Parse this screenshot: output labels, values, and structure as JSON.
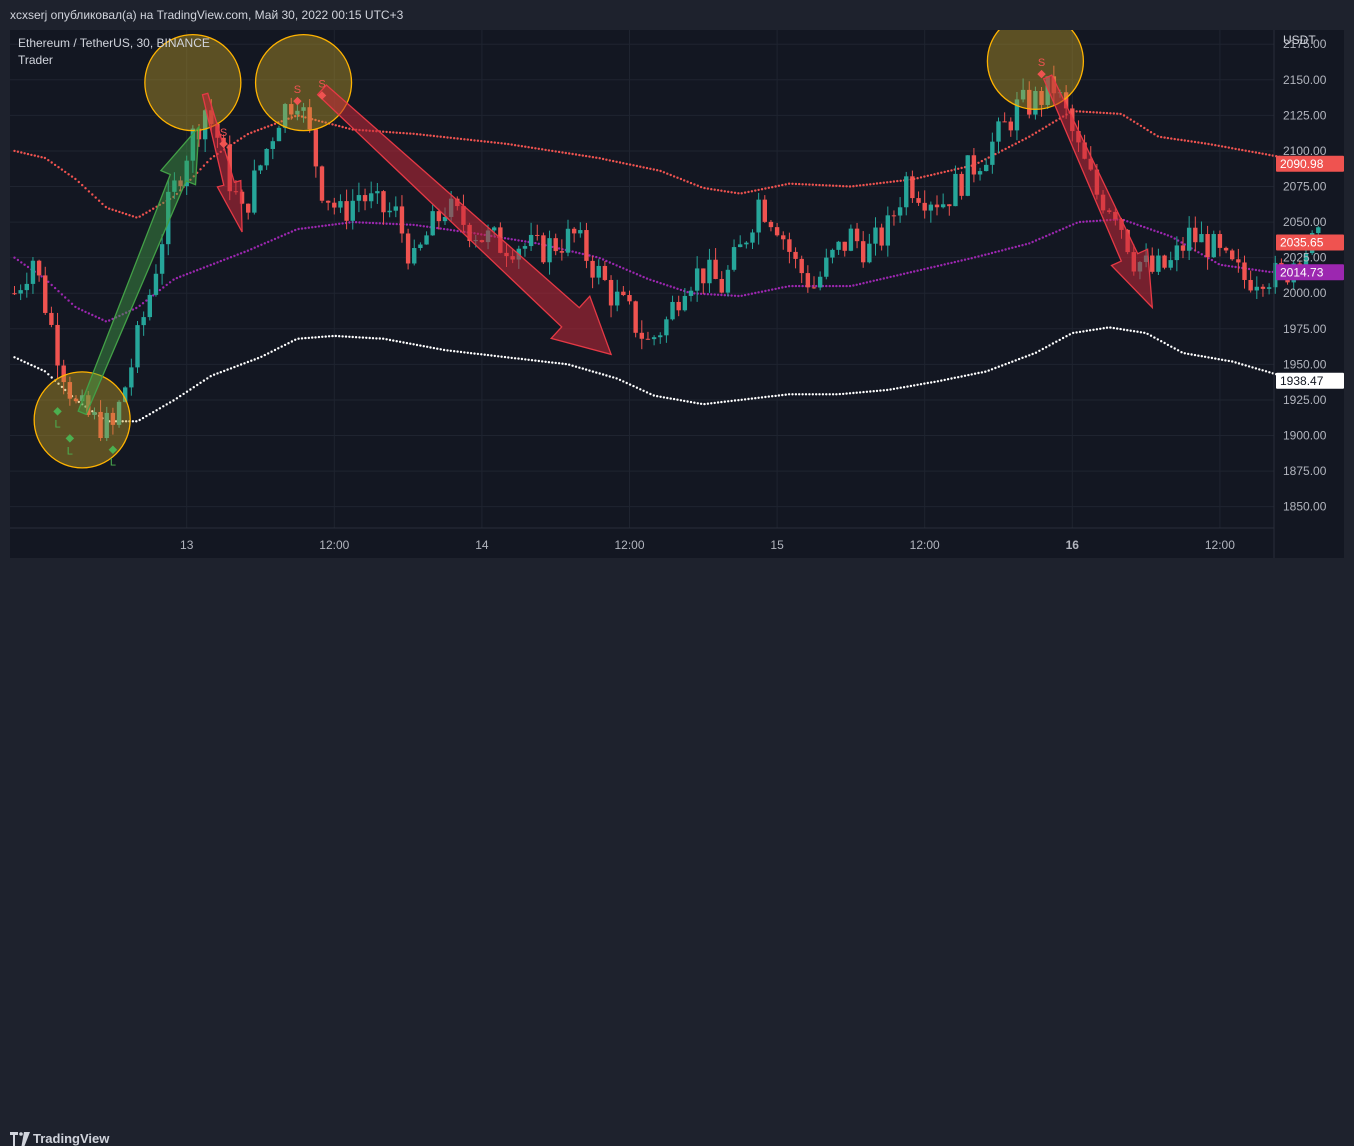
{
  "header": {
    "text": "xcxserj опубликовал(а) на TradingView.com, Май 30, 2022 00:15 UTC+3"
  },
  "legend": {
    "symbol": "Ethereum / TetherUS, 30, BINANCE",
    "indicator": "Trader"
  },
  "footer": {
    "brand": "TradingView",
    "logo_icon": "tradingview-logo-icon"
  },
  "colors": {
    "background": "#131722",
    "chrome": "#1e222d",
    "up": "#26a69a",
    "down": "#ef5350",
    "upper_band": "#ef5350",
    "middle_band": "#9c27b0",
    "lower_band": "#ffffff",
    "buy_marker": "#4caf50",
    "sell_marker": "#ef5350",
    "highlight_circle": "#ffb300"
  },
  "chart_data": {
    "type": "candlestick",
    "symbol": "Ethereum / TetherUS, 30, BINANCE",
    "currency": "USDT",
    "ylim": [
      1835,
      2185
    ],
    "y_ticks": [
      "2175.00",
      "2150.00",
      "2125.00",
      "2100.00",
      "2075.00",
      "2050.00",
      "2025.00",
      "2000.00",
      "1975.00",
      "1950.00",
      "1925.00",
      "1900.00",
      "1875.00",
      "1850.00"
    ],
    "x_ticks": [
      {
        "label": "13",
        "slot": 28,
        "bold": false
      },
      {
        "label": "12:00",
        "slot": 52,
        "bold": false
      },
      {
        "label": "14",
        "slot": 76,
        "bold": false
      },
      {
        "label": "12:00",
        "slot": 100,
        "bold": false
      },
      {
        "label": "15",
        "slot": 124,
        "bold": false
      },
      {
        "label": "12:00",
        "slot": 148,
        "bold": false
      },
      {
        "label": "16",
        "slot": 172,
        "bold": true
      },
      {
        "label": "12:00",
        "slot": 196,
        "bold": false
      }
    ],
    "price_labels": [
      {
        "value": "2090.98",
        "level": 2090.98,
        "color": "#ef5350",
        "text_color": "#ffffff"
      },
      {
        "value": "2035.65",
        "level": 2035.65,
        "color": "#ef5350",
        "text_color": "#ffffff"
      },
      {
        "value": "2014.73",
        "level": 2014.73,
        "color": "#9c27b0",
        "text_color": "#ffffff"
      },
      {
        "value": "1938.47",
        "level": 1938.47,
        "color": "#ffffff",
        "text_color": "#131722"
      }
    ],
    "anchors": [
      {
        "slot": 0,
        "price": 2000
      },
      {
        "slot": 3,
        "price": 2025
      },
      {
        "slot": 7,
        "price": 1960
      },
      {
        "slot": 10,
        "price": 1920
      },
      {
        "slot": 13,
        "price": 1910
      },
      {
        "slot": 16,
        "price": 1905
      },
      {
        "slot": 19,
        "price": 1950
      },
      {
        "slot": 22,
        "price": 2000
      },
      {
        "slot": 25,
        "price": 2060
      },
      {
        "slot": 28,
        "price": 2100
      },
      {
        "slot": 31,
        "price": 2130
      },
      {
        "slot": 33,
        "price": 2110
      },
      {
        "slot": 35,
        "price": 2080
      },
      {
        "slot": 37,
        "price": 2055
      },
      {
        "slot": 40,
        "price": 2090
      },
      {
        "slot": 43,
        "price": 2125
      },
      {
        "slot": 46,
        "price": 2140
      },
      {
        "slot": 48,
        "price": 2110
      },
      {
        "slot": 50,
        "price": 2075
      },
      {
        "slot": 53,
        "price": 2055
      },
      {
        "slot": 56,
        "price": 2070
      },
      {
        "slot": 59,
        "price": 2060
      },
      {
        "slot": 62,
        "price": 2055
      },
      {
        "slot": 65,
        "price": 2020
      },
      {
        "slot": 67,
        "price": 2040
      },
      {
        "slot": 70,
        "price": 2060
      },
      {
        "slot": 73,
        "price": 2050
      },
      {
        "slot": 76,
        "price": 2040
      },
      {
        "slot": 79,
        "price": 2035
      },
      {
        "slot": 82,
        "price": 2035
      },
      {
        "slot": 85,
        "price": 2030
      },
      {
        "slot": 88,
        "price": 2035
      },
      {
        "slot": 91,
        "price": 2040
      },
      {
        "slot": 94,
        "price": 2020
      },
      {
        "slot": 97,
        "price": 2000
      },
      {
        "slot": 100,
        "price": 1985
      },
      {
        "slot": 103,
        "price": 1965
      },
      {
        "slot": 106,
        "price": 1980
      },
      {
        "slot": 109,
        "price": 2010
      },
      {
        "slot": 112,
        "price": 2015
      },
      {
        "slot": 115,
        "price": 2005
      },
      {
        "slot": 118,
        "price": 2030
      },
      {
        "slot": 121,
        "price": 2065
      },
      {
        "slot": 124,
        "price": 2050
      },
      {
        "slot": 127,
        "price": 2020
      },
      {
        "slot": 130,
        "price": 2005
      },
      {
        "slot": 133,
        "price": 2025
      },
      {
        "slot": 136,
        "price": 2040
      },
      {
        "slot": 139,
        "price": 2030
      },
      {
        "slot": 142,
        "price": 2045
      },
      {
        "slot": 145,
        "price": 2080
      },
      {
        "slot": 148,
        "price": 2070
      },
      {
        "slot": 151,
        "price": 2065
      },
      {
        "slot": 154,
        "price": 2080
      },
      {
        "slot": 157,
        "price": 2095
      },
      {
        "slot": 160,
        "price": 2110
      },
      {
        "slot": 163,
        "price": 2130
      },
      {
        "slot": 166,
        "price": 2135
      },
      {
        "slot": 169,
        "price": 2145
      },
      {
        "slot": 171,
        "price": 2125
      },
      {
        "slot": 173,
        "price": 2100
      },
      {
        "slot": 176,
        "price": 2070
      },
      {
        "slot": 179,
        "price": 2060
      },
      {
        "slot": 182,
        "price": 2025
      },
      {
        "slot": 185,
        "price": 2015
      },
      {
        "slot": 188,
        "price": 2020
      },
      {
        "slot": 191,
        "price": 2040
      },
      {
        "slot": 194,
        "price": 2035
      },
      {
        "slot": 197,
        "price": 2020
      },
      {
        "slot": 200,
        "price": 2010
      },
      {
        "slot": 203,
        "price": 2015
      },
      {
        "slot": 206,
        "price": 2010
      },
      {
        "slot": 209,
        "price": 2030
      },
      {
        "slot": 212,
        "price": 2035
      }
    ],
    "upper_band": [
      {
        "slot": 0,
        "price": 2100
      },
      {
        "slot": 5,
        "price": 2095
      },
      {
        "slot": 10,
        "price": 2080
      },
      {
        "slot": 15,
        "price": 2060
      },
      {
        "slot": 20,
        "price": 2053
      },
      {
        "slot": 26,
        "price": 2068
      },
      {
        "slot": 32,
        "price": 2095
      },
      {
        "slot": 38,
        "price": 2112
      },
      {
        "slot": 46,
        "price": 2125
      },
      {
        "slot": 55,
        "price": 2115
      },
      {
        "slot": 65,
        "price": 2112
      },
      {
        "slot": 80,
        "price": 2105
      },
      {
        "slot": 95,
        "price": 2095
      },
      {
        "slot": 105,
        "price": 2086
      },
      {
        "slot": 112,
        "price": 2074
      },
      {
        "slot": 118,
        "price": 2070
      },
      {
        "slot": 126,
        "price": 2077
      },
      {
        "slot": 136,
        "price": 2075
      },
      {
        "slot": 146,
        "price": 2080
      },
      {
        "slot": 156,
        "price": 2090
      },
      {
        "slot": 165,
        "price": 2110
      },
      {
        "slot": 172,
        "price": 2128
      },
      {
        "slot": 180,
        "price": 2126
      },
      {
        "slot": 186,
        "price": 2110
      },
      {
        "slot": 194,
        "price": 2105
      },
      {
        "slot": 203,
        "price": 2098
      },
      {
        "slot": 212,
        "price": 2091
      }
    ],
    "middle_band": [
      {
        "slot": 0,
        "price": 2025
      },
      {
        "slot": 5,
        "price": 2010
      },
      {
        "slot": 10,
        "price": 1990
      },
      {
        "slot": 15,
        "price": 1980
      },
      {
        "slot": 20,
        "price": 1990
      },
      {
        "slot": 26,
        "price": 2010
      },
      {
        "slot": 32,
        "price": 2020
      },
      {
        "slot": 38,
        "price": 2030
      },
      {
        "slot": 46,
        "price": 2045
      },
      {
        "slot": 55,
        "price": 2050
      },
      {
        "slot": 65,
        "price": 2048
      },
      {
        "slot": 75,
        "price": 2042
      },
      {
        "slot": 85,
        "price": 2035
      },
      {
        "slot": 95,
        "price": 2025
      },
      {
        "slot": 103,
        "price": 2010
      },
      {
        "slot": 110,
        "price": 2000
      },
      {
        "slot": 118,
        "price": 1998
      },
      {
        "slot": 126,
        "price": 2005
      },
      {
        "slot": 136,
        "price": 2005
      },
      {
        "slot": 146,
        "price": 2015
      },
      {
        "slot": 156,
        "price": 2025
      },
      {
        "slot": 165,
        "price": 2035
      },
      {
        "slot": 173,
        "price": 2050
      },
      {
        "slot": 180,
        "price": 2052
      },
      {
        "slot": 188,
        "price": 2040
      },
      {
        "slot": 196,
        "price": 2020
      },
      {
        "slot": 204,
        "price": 2015
      },
      {
        "slot": 212,
        "price": 2015
      }
    ],
    "lower_band": [
      {
        "slot": 0,
        "price": 1955
      },
      {
        "slot": 5,
        "price": 1945
      },
      {
        "slot": 10,
        "price": 1925
      },
      {
        "slot": 15,
        "price": 1910
      },
      {
        "slot": 20,
        "price": 1910
      },
      {
        "slot": 26,
        "price": 1925
      },
      {
        "slot": 32,
        "price": 1942
      },
      {
        "slot": 40,
        "price": 1955
      },
      {
        "slot": 46,
        "price": 1968
      },
      {
        "slot": 52,
        "price": 1970
      },
      {
        "slot": 60,
        "price": 1968
      },
      {
        "slot": 70,
        "price": 1960
      },
      {
        "slot": 80,
        "price": 1955
      },
      {
        "slot": 90,
        "price": 1950
      },
      {
        "slot": 98,
        "price": 1940
      },
      {
        "slot": 104,
        "price": 1928
      },
      {
        "slot": 112,
        "price": 1922
      },
      {
        "slot": 118,
        "price": 1925
      },
      {
        "slot": 126,
        "price": 1929
      },
      {
        "slot": 134,
        "price": 1929
      },
      {
        "slot": 142,
        "price": 1932
      },
      {
        "slot": 150,
        "price": 1938
      },
      {
        "slot": 158,
        "price": 1945
      },
      {
        "slot": 166,
        "price": 1958
      },
      {
        "slot": 172,
        "price": 1972
      },
      {
        "slot": 178,
        "price": 1976
      },
      {
        "slot": 184,
        "price": 1972
      },
      {
        "slot": 190,
        "price": 1958
      },
      {
        "slot": 198,
        "price": 1952
      },
      {
        "slot": 206,
        "price": 1942
      },
      {
        "slot": 212,
        "price": 1938
      }
    ],
    "markers": [
      {
        "type": "buy",
        "slot": 7,
        "price": 1917,
        "label": "L"
      },
      {
        "type": "buy",
        "slot": 9,
        "price": 1898,
        "label": "L"
      },
      {
        "type": "buy",
        "slot": 16,
        "price": 1890,
        "label": "L"
      },
      {
        "type": "sell",
        "slot": 34,
        "price": 2105,
        "label": "S"
      },
      {
        "type": "sell",
        "slot": 46,
        "price": 2135,
        "label": "S"
      },
      {
        "type": "sell",
        "slot": 50,
        "price": 2139,
        "label": "S"
      },
      {
        "type": "sell",
        "slot": 167,
        "price": 2154,
        "label": "S"
      }
    ],
    "circles": [
      {
        "slot": 11,
        "price": 1911
      },
      {
        "slot": 29,
        "price": 2148
      },
      {
        "slot": 47,
        "price": 2148
      },
      {
        "slot": 166,
        "price": 2163
      }
    ],
    "arrows": [
      {
        "color": "green",
        "from": {
          "slot": 11,
          "price": 1916
        },
        "to": {
          "slot": 30,
          "price": 2117
        },
        "width": 17
      },
      {
        "color": "red",
        "from": {
          "slot": 31,
          "price": 2140
        },
        "to": {
          "slot": 37,
          "price": 2043
        },
        "width": 11
      },
      {
        "color": "red",
        "from": {
          "slot": 50,
          "price": 2143
        },
        "to": {
          "slot": 97,
          "price": 1957
        },
        "width": 26
      },
      {
        "color": "red",
        "from": {
          "slot": 168,
          "price": 2152
        },
        "to": {
          "slot": 185,
          "price": 1990
        },
        "width": 18
      }
    ]
  }
}
